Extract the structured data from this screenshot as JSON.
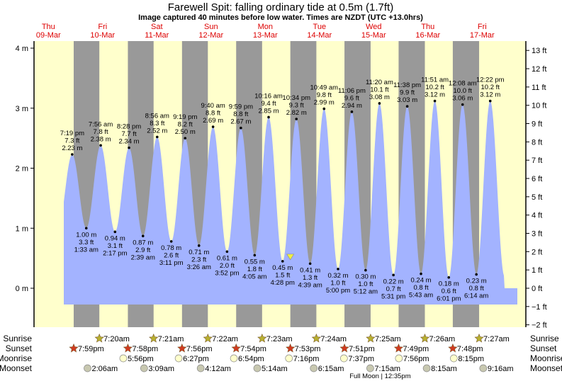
{
  "title": "Farewell Spit: falling  ordinary tide at 0.5m (1.7ft)",
  "subtitle": "Image captured 40 minutes before low water. Times are NZDT (UTC +13.0hrs)",
  "colors": {
    "day": "#ffffcc",
    "night": "#999999",
    "water": "#a3b3ff",
    "date": "#dd0000",
    "sunrise": "#b8b030",
    "sunset": "#d03a20",
    "moonrise": "#ffffcc",
    "moonset": "#c8c8b0",
    "marker": "#f0f040"
  },
  "chart_data": {
    "type": "area",
    "title": "Farewell Spit: falling  ordinary tide at 0.5m (1.7ft)",
    "ylabel_left": "m",
    "ylabel_right": "ft",
    "ylim_m": [
      -0.6,
      4.2
    ],
    "left_ticks": [
      {
        "v": 4,
        "label": "4 m"
      },
      {
        "v": 3,
        "label": "3 m"
      },
      {
        "v": 2,
        "label": "2 m"
      },
      {
        "v": 1,
        "label": "1 m"
      },
      {
        "v": 0,
        "label": "0 m"
      }
    ],
    "right_ticks": [
      {
        "v": 13,
        "label": "13 ft"
      },
      {
        "v": 12,
        "label": "12 ft"
      },
      {
        "v": 11,
        "label": "11 ft"
      },
      {
        "v": 10,
        "label": "10 ft"
      },
      {
        "v": 9,
        "label": "9 ft"
      },
      {
        "v": 8,
        "label": "8 ft"
      },
      {
        "v": 7,
        "label": "7 ft"
      },
      {
        "v": 6,
        "label": "6 ft"
      },
      {
        "v": 5,
        "label": "5 ft"
      },
      {
        "v": 4,
        "label": "4 ft"
      },
      {
        "v": 3,
        "label": "3 ft"
      },
      {
        "v": 2,
        "label": "2 ft"
      },
      {
        "v": 1,
        "label": "1 ft"
      },
      {
        "v": 0,
        "label": "0 ft"
      },
      {
        "v": -1,
        "label": "−1 ft"
      },
      {
        "v": -2,
        "label": "−2 ft"
      }
    ],
    "days": [
      {
        "day": 9,
        "name": "Thu",
        "date": "09-Mar"
      },
      {
        "day": 10,
        "name": "Fri",
        "date": "10-Mar"
      },
      {
        "day": 11,
        "name": "Sat",
        "date": "11-Mar"
      },
      {
        "day": 12,
        "name": "Sun",
        "date": "12-Mar"
      },
      {
        "day": 13,
        "name": "Mon",
        "date": "13-Mar"
      },
      {
        "day": 14,
        "name": "Tue",
        "date": "14-Mar"
      },
      {
        "day": 15,
        "name": "Wed",
        "date": "15-Mar"
      },
      {
        "day": 16,
        "name": "Thu",
        "date": "16-Mar"
      },
      {
        "day": 17,
        "name": "Fri",
        "date": "17-Mar"
      }
    ],
    "tides": [
      {
        "day": 9,
        "time": "7:19 pm",
        "type": "high",
        "m": "2.23 m",
        "ft": "7.3 ft",
        "v": 2.23
      },
      {
        "day": 10,
        "time": "1:33 am",
        "type": "low",
        "m": "1.00 m",
        "ft": "3.3 ft",
        "v": 1.0
      },
      {
        "day": 10,
        "time": "7:56 am",
        "type": "high",
        "m": "2.38 m",
        "ft": "7.8 ft",
        "v": 2.38
      },
      {
        "day": 10,
        "time": "2:17 pm",
        "type": "low",
        "m": "0.94 m",
        "ft": "3.1 ft",
        "v": 0.94
      },
      {
        "day": 10,
        "time": "8:28 pm",
        "type": "high",
        "m": "2.34 m",
        "ft": "7.7 ft",
        "v": 2.34
      },
      {
        "day": 11,
        "time": "2:39 am",
        "type": "low",
        "m": "0.87 m",
        "ft": "2.9 ft",
        "v": 0.87
      },
      {
        "day": 11,
        "time": "8:56 am",
        "type": "high",
        "m": "2.52 m",
        "ft": "8.3 ft",
        "v": 2.52
      },
      {
        "day": 11,
        "time": "3:11 pm",
        "type": "low",
        "m": "0.78 m",
        "ft": "2.6 ft",
        "v": 0.78
      },
      {
        "day": 11,
        "time": "9:19 pm",
        "type": "high",
        "m": "2.50 m",
        "ft": "8.2 ft",
        "v": 2.5
      },
      {
        "day": 12,
        "time": "3:26 am",
        "type": "low",
        "m": "0.71 m",
        "ft": "2.3 ft",
        "v": 0.71
      },
      {
        "day": 12,
        "time": "9:40 am",
        "type": "high",
        "m": "2.69 m",
        "ft": "8.8 ft",
        "v": 2.69
      },
      {
        "day": 12,
        "time": "3:52 pm",
        "type": "low",
        "m": "0.61 m",
        "ft": "2.0 ft",
        "v": 0.61
      },
      {
        "day": 12,
        "time": "9:59 pm",
        "type": "high",
        "m": "2.67 m",
        "ft": "8.8 ft",
        "v": 2.67
      },
      {
        "day": 13,
        "time": "4:05 am",
        "type": "low",
        "m": "0.55 m",
        "ft": "1.8 ft",
        "v": 0.55
      },
      {
        "day": 13,
        "time": "10:16 am",
        "type": "high",
        "m": "2.85 m",
        "ft": "9.4 ft",
        "v": 2.85
      },
      {
        "day": 13,
        "time": "4:28 pm",
        "type": "low",
        "m": "0.45 m",
        "ft": "1.5 ft",
        "v": 0.45
      },
      {
        "day": 13,
        "time": "10:34 pm",
        "type": "high",
        "m": "2.82 m",
        "ft": "9.3 ft",
        "v": 2.82
      },
      {
        "day": 14,
        "time": "4:39 am",
        "type": "low",
        "m": "0.41 m",
        "ft": "1.3 ft",
        "v": 0.41
      },
      {
        "day": 14,
        "time": "10:49 am",
        "type": "high",
        "m": "2.99 m",
        "ft": "9.8 ft",
        "v": 2.99
      },
      {
        "day": 14,
        "time": "5:00 pm",
        "type": "low",
        "m": "0.32 m",
        "ft": "1.0 ft",
        "v": 0.32
      },
      {
        "day": 14,
        "time": "11:06 pm",
        "type": "high",
        "m": "2.94 m",
        "ft": "9.6 ft",
        "v": 2.94
      },
      {
        "day": 15,
        "time": "5:12 am",
        "type": "low",
        "m": "0.30 m",
        "ft": "1.0 ft",
        "v": 0.3
      },
      {
        "day": 15,
        "time": "11:20 am",
        "type": "high",
        "m": "3.08 m",
        "ft": "10.1 ft",
        "v": 3.08
      },
      {
        "day": 15,
        "time": "5:31 pm",
        "type": "low",
        "m": "0.22 m",
        "ft": "0.7 ft",
        "v": 0.22
      },
      {
        "day": 15,
        "time": "11:38 pm",
        "type": "high",
        "m": "3.03 m",
        "ft": "9.9 ft",
        "v": 3.03
      },
      {
        "day": 16,
        "time": "5:43 am",
        "type": "low",
        "m": "0.24 m",
        "ft": "0.8 ft",
        "v": 0.24
      },
      {
        "day": 16,
        "time": "11:51 am",
        "type": "high",
        "m": "3.12 m",
        "ft": "10.2 ft",
        "v": 3.12
      },
      {
        "day": 16,
        "time": "6:01 pm",
        "type": "low",
        "m": "0.18 m",
        "ft": "0.6 ft",
        "v": 0.18
      },
      {
        "day": 17,
        "time": "12:08 am",
        "type": "high",
        "m": "3.06 m",
        "ft": "10.0 ft",
        "v": 3.06
      },
      {
        "day": 17,
        "time": "6:14 am",
        "type": "low",
        "m": "0.23 m",
        "ft": "0.8 ft",
        "v": 0.23
      },
      {
        "day": 17,
        "time": "12:22 pm",
        "type": "high",
        "m": "3.12 m",
        "ft": "10.2 ft",
        "v": 3.12
      }
    ],
    "current": {
      "day": 13,
      "time": "3:48 pm",
      "v": 0.5
    }
  },
  "astro": {
    "row_labels": {
      "sunrise": "Sunrise",
      "sunset": "Sunset",
      "moonrise": "Moonrise",
      "moonset": "Moonset"
    },
    "sunrise": [
      {
        "day": 10,
        "time": "7:20am"
      },
      {
        "day": 11,
        "time": "7:21am"
      },
      {
        "day": 12,
        "time": "7:22am"
      },
      {
        "day": 13,
        "time": "7:23am"
      },
      {
        "day": 14,
        "time": "7:24am"
      },
      {
        "day": 15,
        "time": "7:25am"
      },
      {
        "day": 16,
        "time": "7:26am"
      },
      {
        "day": 17,
        "time": "7:27am"
      }
    ],
    "sunset": [
      {
        "day": 9,
        "time": "7:59pm"
      },
      {
        "day": 10,
        "time": "7:58pm"
      },
      {
        "day": 11,
        "time": "7:56pm"
      },
      {
        "day": 12,
        "time": "7:54pm"
      },
      {
        "day": 13,
        "time": "7:53pm"
      },
      {
        "day": 14,
        "time": "7:51pm"
      },
      {
        "day": 15,
        "time": "7:49pm"
      },
      {
        "day": 16,
        "time": "7:48pm"
      }
    ],
    "moonrise": [
      {
        "day": 10,
        "time": "5:56pm"
      },
      {
        "day": 11,
        "time": "6:27pm"
      },
      {
        "day": 12,
        "time": "6:54pm"
      },
      {
        "day": 13,
        "time": "7:16pm"
      },
      {
        "day": 14,
        "time": "7:37pm"
      },
      {
        "day": 15,
        "time": "7:56pm"
      },
      {
        "day": 16,
        "time": "8:15pm"
      }
    ],
    "moonset": [
      {
        "day": 10,
        "time": "2:06am"
      },
      {
        "day": 11,
        "time": "3:09am"
      },
      {
        "day": 12,
        "time": "4:12am"
      },
      {
        "day": 13,
        "time": "5:14am"
      },
      {
        "day": 14,
        "time": "6:15am"
      },
      {
        "day": 15,
        "time": "7:15am"
      },
      {
        "day": 16,
        "time": "8:15am"
      },
      {
        "day": 17,
        "time": "9:16am"
      }
    ],
    "phase": {
      "day": 15,
      "time": "12:35pm",
      "label": "Full Moon | 12:35pm"
    }
  }
}
